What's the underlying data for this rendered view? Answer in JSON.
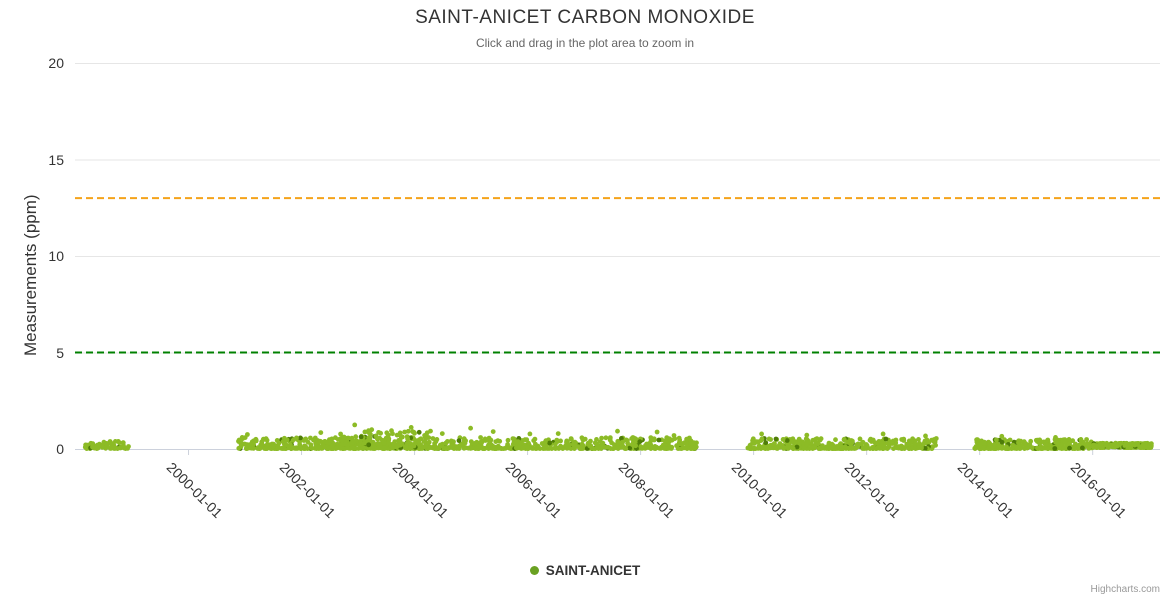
{
  "chart_data": {
    "type": "scatter",
    "title": "SAINT-ANICET CARBON MONOXIDE",
    "subtitle": "Click and drag in the plot area to zoom in",
    "ylabel": "Measurements (ppm)",
    "xlabel": "",
    "credits": "Highcharts.com",
    "ylim": [
      0,
      20
    ],
    "yticks": [
      0,
      5,
      10,
      15,
      20
    ],
    "xlim_years": [
      1998.0,
      2017.2
    ],
    "xticks": [
      {
        "year": 2000,
        "label": "2000-01-01"
      },
      {
        "year": 2002,
        "label": "2002-01-01"
      },
      {
        "year": 2004,
        "label": "2004-01-01"
      },
      {
        "year": 2006,
        "label": "2006-01-01"
      },
      {
        "year": 2008,
        "label": "2008-01-01"
      },
      {
        "year": 2010,
        "label": "2010-01-01"
      },
      {
        "year": 2012,
        "label": "2012-01-01"
      },
      {
        "year": 2014,
        "label": "2014-01-01"
      },
      {
        "year": 2016,
        "label": "2016-01-01"
      }
    ],
    "grid": true,
    "legend_position": "bottom-center",
    "plot_lines": [
      {
        "value": 13,
        "color": "#f5a31a",
        "style": "dashed",
        "name": "upper-threshold"
      },
      {
        "value": 5,
        "color": "#008000",
        "style": "dashed",
        "name": "lower-threshold"
      }
    ],
    "legend": [
      {
        "name": "SAINT-ANICET",
        "marker_color": "#6aa122"
      }
    ],
    "series": [
      {
        "name": "SAINT-ANICET",
        "color": "#8cbb26",
        "dark_color": "#4f7d08",
        "dark_fraction": 0.06,
        "marker_radius": 2.4,
        "units": "ppm vs year",
        "clusters": [
          {
            "x": [
              1998.18,
              1998.95
            ],
            "ymin": 0.02,
            "ymax": 0.4,
            "n": 70,
            "bias": 2.2
          },
          {
            "x": [
              2000.88,
              2009.0
            ],
            "ymin": 0.02,
            "ymax": 0.6,
            "n": 850,
            "bias": 2.4
          },
          {
            "x": [
              2002.6,
              2004.35
            ],
            "ymin": 0.05,
            "ymax": 0.95,
            "n": 140,
            "bias": 2.0
          },
          {
            "x": [
              2009.9,
              2013.25
            ],
            "ymin": 0.02,
            "ymax": 0.55,
            "n": 380,
            "bias": 2.4
          },
          {
            "x": [
              2013.92,
              2016.0
            ],
            "ymin": 0.02,
            "ymax": 0.5,
            "n": 260,
            "bias": 2.4
          },
          {
            "x": [
              2016.02,
              2017.05
            ],
            "ymin": 0.07,
            "ymax": 0.3,
            "n": 300,
            "bias": 1.3
          }
        ],
        "spikes": [
          [
            1998.85,
            0.32
          ],
          [
            2001.05,
            0.75
          ],
          [
            2002.35,
            0.85
          ],
          [
            2002.95,
            1.25
          ],
          [
            2003.25,
            1.0
          ],
          [
            2003.6,
            0.95
          ],
          [
            2003.95,
            1.12
          ],
          [
            2004.5,
            0.8
          ],
          [
            2005.0,
            1.08
          ],
          [
            2005.4,
            0.9
          ],
          [
            2006.05,
            0.78
          ],
          [
            2006.55,
            0.8
          ],
          [
            2007.6,
            0.92
          ],
          [
            2008.3,
            0.88
          ],
          [
            2008.6,
            0.7
          ],
          [
            2010.15,
            0.78
          ],
          [
            2010.95,
            0.72
          ],
          [
            2012.3,
            0.78
          ],
          [
            2013.05,
            0.68
          ],
          [
            2014.4,
            0.66
          ],
          [
            2015.35,
            0.6
          ],
          [
            2015.8,
            0.5
          ]
        ]
      }
    ],
    "colors": {
      "grid": "#e6e6e6",
      "axis_line": "#ccd1dc",
      "title_text": "#333333",
      "subtitle_text": "#666666",
      "tick_text": "#333333",
      "credits_text": "#999999"
    }
  }
}
